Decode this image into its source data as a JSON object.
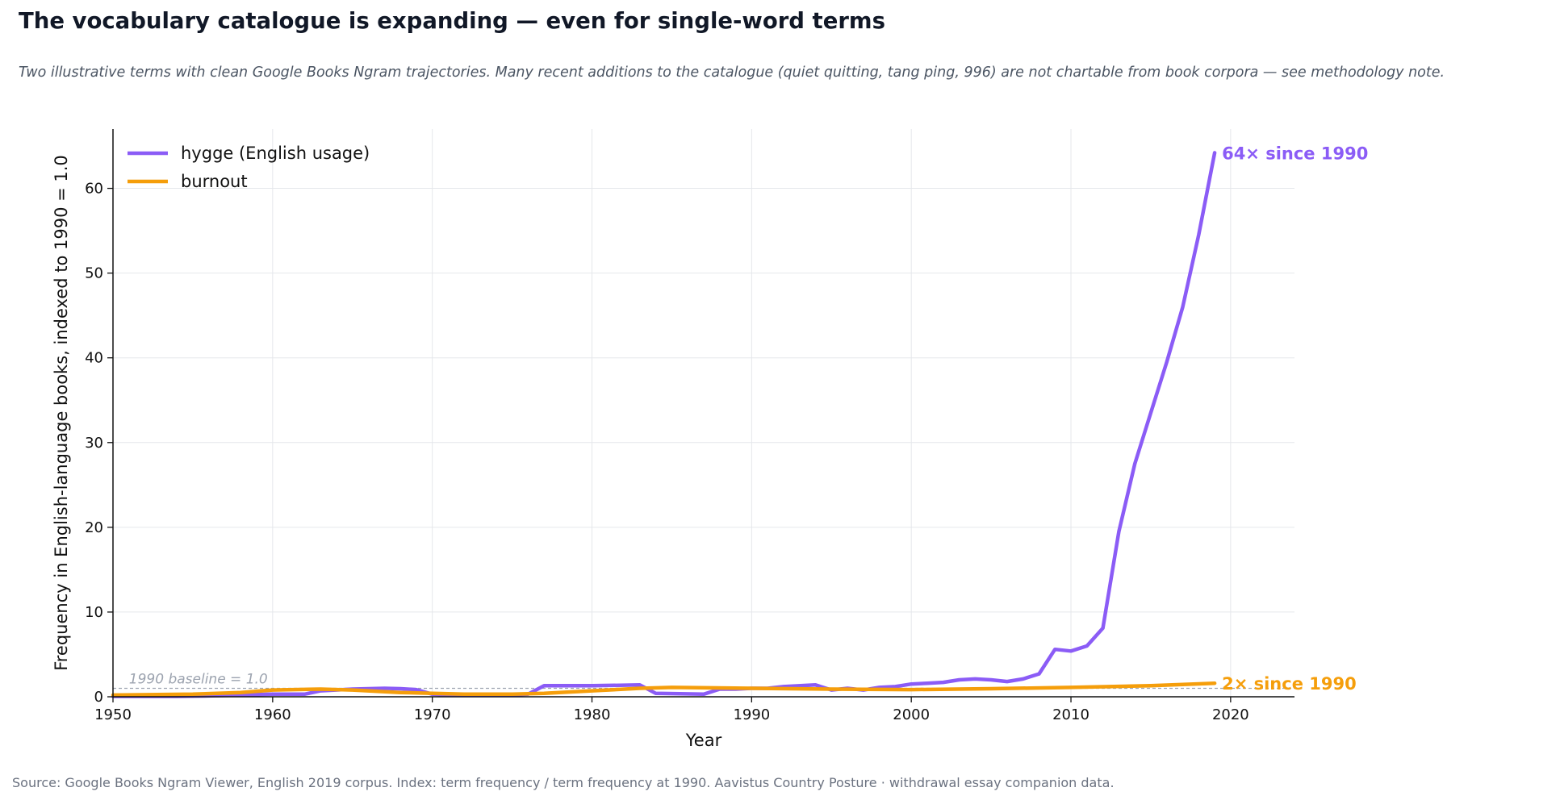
{
  "title": "The vocabulary catalogue is expanding — even for single-word terms",
  "subtitle": "Two illustrative terms with clean Google Books Ngram trajectories. Many recent additions to the catalogue (quiet quitting, tang ping, 996) are not chartable from book corpora — see methodology note.",
  "source": "Source: Google Books Ngram Viewer, English 2019 corpus. Index: term frequency / term frequency at 1990. Aavistus Country Posture · withdrawal essay companion data.",
  "chart_data": {
    "type": "line",
    "xlabel": "Year",
    "ylabel": "Frequency in English-language books, indexed to 1990 = 1.0",
    "xlim": [
      1950,
      2024
    ],
    "ylim": [
      0,
      67
    ],
    "xticks": [
      1950,
      1960,
      1970,
      1980,
      1990,
      2000,
      2010,
      2020
    ],
    "yticks": [
      0,
      10,
      20,
      30,
      40,
      50,
      60
    ],
    "grid": true,
    "legend": "top-left",
    "baseline": {
      "value": 1.0,
      "label": "1990 baseline = 1.0"
    },
    "series": [
      {
        "name": "hygge (English usage)",
        "color": "#8b5cf6",
        "end_label": "64× since 1990",
        "x": [
          1950,
          1952,
          1954,
          1956,
          1958,
          1960,
          1962,
          1963,
          1965,
          1967,
          1968,
          1969,
          1970,
          1971,
          1975,
          1976,
          1977,
          1980,
          1983,
          1984,
          1987,
          1988,
          1989,
          1990,
          1991,
          1992,
          1994,
          1995,
          1996,
          1997,
          1998,
          1999,
          2000,
          2001,
          2002,
          2003,
          2004,
          2005,
          2006,
          2007,
          2008,
          2009,
          2010,
          2011,
          2012,
          2013,
          2014,
          2015,
          2016,
          2017,
          2018,
          2019
        ],
        "values": [
          0.05,
          0.05,
          0.05,
          0.1,
          0.2,
          0.3,
          0.3,
          0.7,
          0.9,
          1.0,
          0.95,
          0.85,
          0.3,
          0.2,
          0.2,
          0.3,
          1.3,
          1.3,
          1.4,
          0.4,
          0.3,
          0.9,
          0.9,
          1.0,
          1.0,
          1.2,
          1.4,
          0.8,
          1.0,
          0.8,
          1.1,
          1.2,
          1.5,
          1.6,
          1.7,
          2.0,
          2.1,
          2.0,
          1.8,
          2.1,
          2.7,
          5.6,
          5.4,
          6.0,
          8.1,
          19.5,
          27.5,
          33.5,
          39.5,
          46.0,
          54.5,
          64.2
        ]
      },
      {
        "name": "burnout",
        "color": "#f59e0b",
        "end_label": "2× since 1990",
        "x": [
          1950,
          1955,
          1958,
          1960,
          1963,
          1965,
          1968,
          1970,
          1972,
          1975,
          1977,
          1980,
          1983,
          1985,
          1990,
          1995,
          2000,
          2005,
          2010,
          2015,
          2019
        ],
        "values": [
          0.2,
          0.3,
          0.5,
          0.8,
          0.9,
          0.8,
          0.5,
          0.4,
          0.3,
          0.3,
          0.4,
          0.7,
          1.0,
          1.1,
          1.0,
          0.9,
          0.85,
          0.95,
          1.1,
          1.3,
          1.6
        ]
      }
    ]
  }
}
